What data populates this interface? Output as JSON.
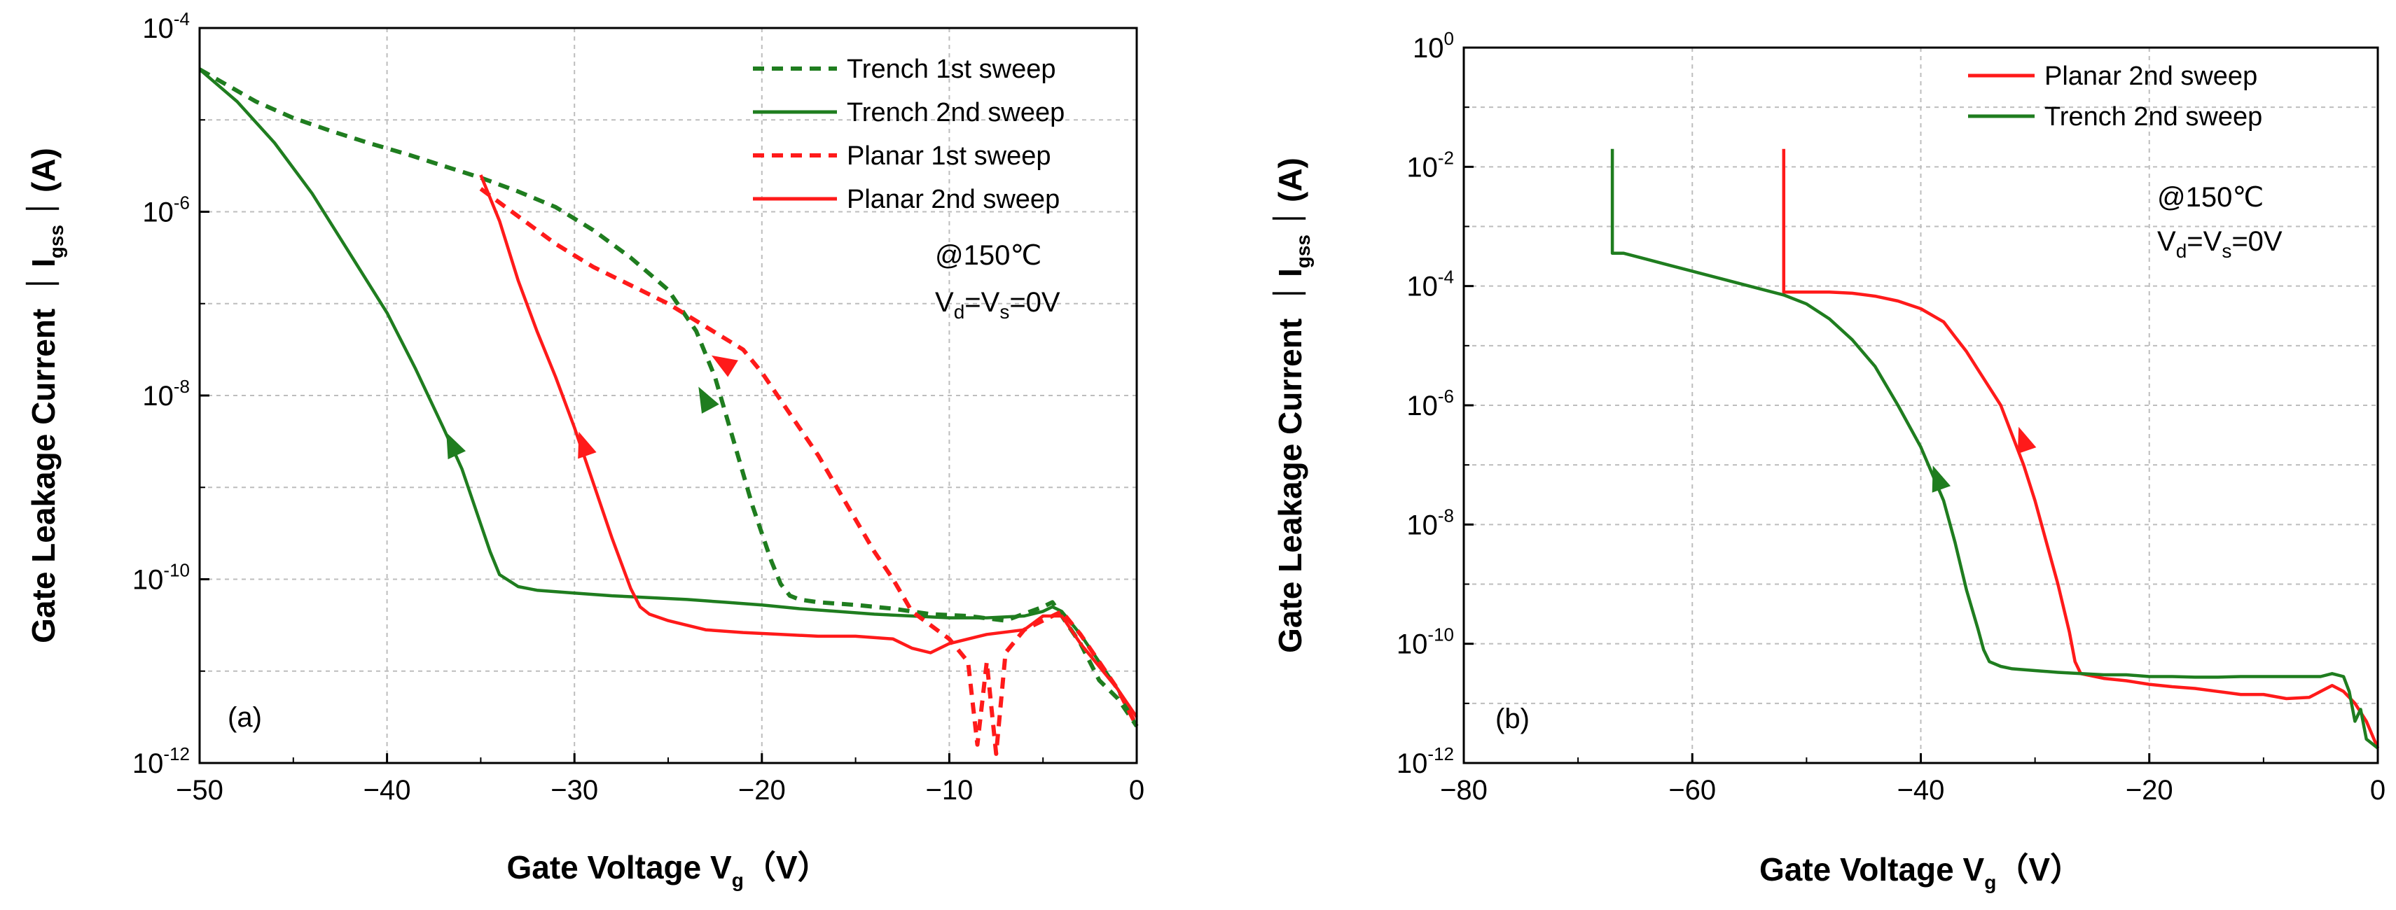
{
  "chart_data": [
    {
      "type": "line",
      "panel_label": "(a)",
      "xlabel_main": "Gate Voltage V",
      "xlabel_sub": "g",
      "xlabel_unit": "（V）",
      "ylabel_main": "Gate Leakage Current ｜I",
      "ylabel_sub": "gss",
      "ylabel_unit": "｜(A)",
      "xlim": [
        -50,
        0
      ],
      "ylim_exp": [
        -12,
        -4
      ],
      "y_scale": "log",
      "grid": true,
      "xticks": [
        -50,
        -40,
        -30,
        -20,
        -10,
        0
      ],
      "xtick_labels": [
        "−50",
        "−40",
        "−30",
        "−20",
        "−10",
        "0"
      ],
      "yticks_exp": [
        -12,
        -10,
        -8,
        -6,
        -4
      ],
      "ytick_base": "10",
      "ytick_exp_labels": [
        "-12",
        "-10",
        "-8",
        "-6",
        "-4"
      ],
      "annotation_temp": "@150℃",
      "annotation_bias": {
        "a": "V",
        "a_sub": "d",
        "mid": "=V",
        "b_sub": "s",
        "end": "=0V"
      },
      "legend_position": "top-right",
      "series": [
        {
          "name": "Trench 1st sweep",
          "color": "#1f7d1f",
          "dash": true,
          "x": [
            -50,
            -47,
            -45,
            -43,
            -41,
            -39,
            -37,
            -35,
            -33,
            -31,
            -29,
            -27,
            -25,
            -23.5,
            -22.5,
            -21.5,
            -20.5,
            -19.5,
            -19,
            -18.5,
            -18,
            -17,
            -15,
            -13,
            -11,
            -9,
            -7,
            -5,
            -4.5,
            -4,
            -3,
            -2,
            -1,
            0
          ],
          "log_y": [
            -4.45,
            -4.8,
            -4.98,
            -5.12,
            -5.25,
            -5.37,
            -5.5,
            -5.63,
            -5.78,
            -5.95,
            -6.2,
            -6.5,
            -6.85,
            -7.3,
            -7.8,
            -8.5,
            -9.2,
            -9.8,
            -10.05,
            -10.18,
            -10.22,
            -10.25,
            -10.28,
            -10.32,
            -10.38,
            -10.4,
            -10.45,
            -10.3,
            -10.25,
            -10.4,
            -10.7,
            -11.1,
            -11.3,
            -11.6
          ],
          "arrow": {
            "x": -23,
            "log_y": -8.05
          }
        },
        {
          "name": "Trench 2nd sweep",
          "color": "#1f7d1f",
          "dash": false,
          "x": [
            -50,
            -48,
            -46,
            -44,
            -42,
            -40,
            -38.5,
            -37,
            -36,
            -35,
            -34.5,
            -34,
            -33,
            -32,
            -30,
            -28,
            -26,
            -24,
            -22,
            -20,
            -18,
            -16,
            -14,
            -12,
            -10,
            -8,
            -6,
            -5,
            -4.5,
            -4,
            -3,
            -2,
            -1,
            0
          ],
          "log_y": [
            -4.45,
            -4.8,
            -5.25,
            -5.8,
            -6.45,
            -7.1,
            -7.7,
            -8.35,
            -8.8,
            -9.4,
            -9.7,
            -9.95,
            -10.08,
            -10.12,
            -10.15,
            -10.18,
            -10.2,
            -10.22,
            -10.25,
            -10.28,
            -10.32,
            -10.35,
            -10.38,
            -10.4,
            -10.42,
            -10.42,
            -10.4,
            -10.35,
            -10.3,
            -10.35,
            -10.6,
            -10.9,
            -11.2,
            -11.6
          ],
          "arrow": {
            "x": -36.5,
            "log_y": -8.55
          }
        },
        {
          "name": "Planar 1st sweep",
          "color": "#ff1a1a",
          "dash": true,
          "x": [
            -35,
            -33,
            -31,
            -29,
            -27,
            -25,
            -23,
            -21,
            -20,
            -19,
            -18,
            -17,
            -16,
            -15,
            -14,
            -13,
            -12,
            -11,
            -10,
            -9,
            -8.5,
            -8,
            -7.5,
            -7,
            -6,
            -5,
            -4,
            -3,
            -2,
            -1,
            0
          ],
          "log_y": [
            -5.75,
            -6.05,
            -6.35,
            -6.6,
            -6.8,
            -7.0,
            -7.25,
            -7.5,
            -7.75,
            -8.05,
            -8.35,
            -8.65,
            -9.0,
            -9.35,
            -9.7,
            -10.0,
            -10.35,
            -10.5,
            -10.65,
            -10.9,
            -11.8,
            -10.9,
            -11.9,
            -10.8,
            -10.55,
            -10.45,
            -10.35,
            -10.6,
            -10.9,
            -11.2,
            -11.6
          ],
          "arrow": {
            "x": -22,
            "log_y": -7.65
          }
        },
        {
          "name": "Planar 2nd sweep",
          "color": "#ff1a1a",
          "dash": false,
          "x": [
            -35,
            -34,
            -33,
            -32,
            -31,
            -30,
            -29,
            -28,
            -27,
            -26.5,
            -26,
            -25,
            -23,
            -21,
            -19,
            -17,
            -15,
            -13,
            -12,
            -11,
            -10,
            -8,
            -6,
            -5,
            -4,
            -3,
            -2,
            -1,
            0
          ],
          "log_y": [
            -5.6,
            -6.1,
            -6.75,
            -7.3,
            -7.8,
            -8.35,
            -8.95,
            -9.55,
            -10.1,
            -10.3,
            -10.38,
            -10.45,
            -10.55,
            -10.58,
            -10.6,
            -10.62,
            -10.62,
            -10.65,
            -10.75,
            -10.8,
            -10.7,
            -10.6,
            -10.55,
            -10.4,
            -10.4,
            -10.7,
            -10.95,
            -11.2,
            -11.5
          ],
          "arrow": {
            "x": -29.5,
            "log_y": -8.55
          }
        }
      ]
    },
    {
      "type": "line",
      "panel_label": "(b)",
      "xlabel_main": "Gate Voltage V",
      "xlabel_sub": "g",
      "xlabel_unit": "（V）",
      "ylabel_main": "Gate Leakage Current ｜I",
      "ylabel_sub": "gss",
      "ylabel_unit": "｜(A)",
      "xlim": [
        -80,
        0
      ],
      "ylim_exp": [
        -12,
        0
      ],
      "y_scale": "log",
      "grid": true,
      "xticks": [
        -80,
        -60,
        -40,
        -20,
        0
      ],
      "xtick_labels": [
        "−80",
        "−60",
        "−40",
        "−20",
        "0"
      ],
      "yticks_exp": [
        -12,
        -10,
        -8,
        -6,
        -4,
        -2,
        0
      ],
      "ytick_base": "10",
      "ytick_exp_labels": [
        "-12",
        "-10",
        "-8",
        "-6",
        "-4",
        "-2",
        "0"
      ],
      "annotation_temp": "@150℃",
      "annotation_bias": {
        "a": "V",
        "a_sub": "d",
        "mid": "=V",
        "b_sub": "s",
        "end": "=0V"
      },
      "legend_position": "top-right",
      "series": [
        {
          "name": "Planar 2nd sweep",
          "color": "#ff1a1a",
          "dash": false,
          "x": [
            -52,
            -52,
            -50,
            -48,
            -46,
            -44,
            -42,
            -40,
            -38,
            -37,
            -36,
            -35,
            -34,
            -33,
            -32,
            -31,
            -30,
            -29,
            -28,
            -27,
            -26.5,
            -26,
            -24,
            -22,
            -20,
            -18,
            -16,
            -14,
            -12,
            -10,
            -8,
            -6,
            -5,
            -4,
            -3,
            -2,
            -1,
            0
          ],
          "log_y": [
            -1.7,
            -4.1,
            -4.1,
            -4.1,
            -4.12,
            -4.17,
            -4.25,
            -4.38,
            -4.6,
            -4.85,
            -5.1,
            -5.4,
            -5.7,
            -6.0,
            -6.5,
            -7.0,
            -7.6,
            -8.3,
            -9.0,
            -9.8,
            -10.3,
            -10.5,
            -10.58,
            -10.62,
            -10.68,
            -10.72,
            -10.75,
            -10.8,
            -10.85,
            -10.85,
            -10.92,
            -10.9,
            -10.8,
            -10.7,
            -10.8,
            -11.0,
            -11.3,
            -11.75
          ],
          "arrow": {
            "x": -31,
            "log_y": -6.6
          }
        },
        {
          "name": "Trench 2nd sweep",
          "color": "#1f7d1f",
          "dash": false,
          "x": [
            -67,
            -67,
            -66,
            -64,
            -62,
            -60,
            -58,
            -56,
            -54,
            -52,
            -50,
            -48,
            -46,
            -44,
            -42,
            -40,
            -38,
            -37,
            -36,
            -35,
            -34.5,
            -34,
            -33,
            -32,
            -30,
            -28,
            -26,
            -24,
            -22,
            -20,
            -18,
            -16,
            -14,
            -12,
            -10,
            -8,
            -6,
            -5,
            -4,
            -3,
            -2.5,
            -2,
            -1.5,
            -1,
            0
          ],
          "log_y": [
            -1.7,
            -3.45,
            -3.45,
            -3.55,
            -3.65,
            -3.75,
            -3.85,
            -3.95,
            -4.05,
            -4.15,
            -4.3,
            -4.55,
            -4.9,
            -5.35,
            -6.0,
            -6.7,
            -7.6,
            -8.3,
            -9.1,
            -9.75,
            -10.1,
            -10.3,
            -10.38,
            -10.42,
            -10.45,
            -10.48,
            -10.5,
            -10.52,
            -10.52,
            -10.55,
            -10.55,
            -10.56,
            -10.56,
            -10.55,
            -10.55,
            -10.55,
            -10.55,
            -10.55,
            -10.5,
            -10.55,
            -10.8,
            -11.3,
            -11.1,
            -11.6,
            -11.75
          ],
          "arrow": {
            "x": -38.5,
            "log_y": -7.25
          }
        }
      ]
    }
  ]
}
